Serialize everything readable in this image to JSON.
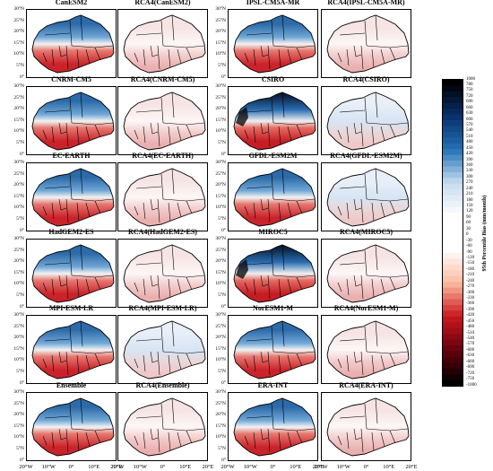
{
  "figure": {
    "panels": [
      {
        "title": "CanESM2",
        "style": "gcm"
      },
      {
        "title": "RCA4(CanESM2)",
        "style": "rca"
      },
      {
        "title": "IPSL-CM5A-MR",
        "style": "gcm"
      },
      {
        "title": "RCA4(IPSL-CM5A-MR)",
        "style": "rca"
      },
      {
        "title": "CNRM-CM5",
        "style": "gcm"
      },
      {
        "title": "RCA4(CNRM-CM5)",
        "style": "rca"
      },
      {
        "title": "CSIRO",
        "style": "gcm-strong"
      },
      {
        "title": "RCA4(CSIRO)",
        "style": "rca-blue"
      },
      {
        "title": "EC-EARTH",
        "style": "gcm"
      },
      {
        "title": "RCA4(EC-EARTH)",
        "style": "rca"
      },
      {
        "title": "GFDL-ESM2M",
        "style": "gcm"
      },
      {
        "title": "RCA4(GFDL-ESM2M)",
        "style": "rca-blue"
      },
      {
        "title": "HadGEM2-ES",
        "style": "gcm"
      },
      {
        "title": "RCA4(HadGEM2-ES)",
        "style": "rca"
      },
      {
        "title": "MIROC5",
        "style": "gcm-strong"
      },
      {
        "title": "RCA4(MIROC5)",
        "style": "rca"
      },
      {
        "title": "MPI-ESM-LR",
        "style": "gcm"
      },
      {
        "title": "RCA4(MPI-ESM-LR)",
        "style": "rca-blue"
      },
      {
        "title": "NorESM1-M",
        "style": "gcm"
      },
      {
        "title": "RCA4(NorESM1-M)",
        "style": "rca"
      },
      {
        "title": "Ensemble",
        "style": "gcm"
      },
      {
        "title": "RCA4(Ensemble)",
        "style": "rca"
      },
      {
        "title": "ERA-INT",
        "style": "gcm"
      },
      {
        "title": "RCA4(ERA-INT)",
        "style": "rca"
      }
    ],
    "y_tick_labels": [
      "30°N",
      "25°N",
      "20°N",
      "15°N",
      "10°N",
      "5°N",
      "0°"
    ],
    "x_tick_labels": [
      "20°W",
      "10°W",
      "0°",
      "10°E",
      "20°E"
    ],
    "colorbar": {
      "label": "95th Percentile Bias (mm/month)",
      "ticks": [
        "1000",
        "780",
        "750",
        "720",
        "690",
        "660",
        "630",
        "600",
        "570",
        "540",
        "510",
        "480",
        "450",
        "420",
        "390",
        "360",
        "330",
        "300",
        "270",
        "240",
        "210",
        "180",
        "150",
        "120",
        "90",
        "60",
        "30",
        "0",
        "-30",
        "-60",
        "-90",
        "-120",
        "-150",
        "-180",
        "-210",
        "-240",
        "-270",
        "-300",
        "-330",
        "-360",
        "-390",
        "-420",
        "-450",
        "-480",
        "-510",
        "-540",
        "-570",
        "-600",
        "-630",
        "-660",
        "-690",
        "-720",
        "-750",
        "-1000"
      ],
      "colors": {
        "max": "#000000",
        "dark_blue": "#08306b",
        "blue": "#2171b5",
        "light_blue": "#c6dbef",
        "white": "#ffffff",
        "light_red": "#fcbba1",
        "red": "#cb181d",
        "dark_red": "#67000d",
        "min": "#000000"
      }
    }
  }
}
